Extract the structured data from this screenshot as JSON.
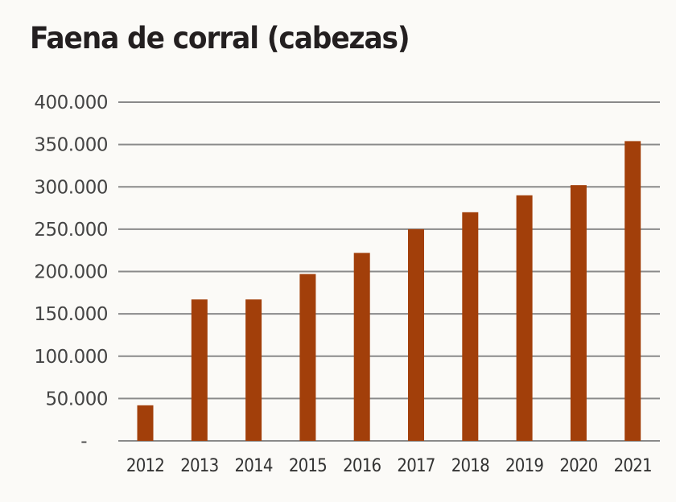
{
  "chart_data": {
    "type": "bar",
    "title": "Faena de corral (cabezas)",
    "xlabel": "",
    "ylabel": "",
    "categories": [
      "2012",
      "2013",
      "2014",
      "2015",
      "2016",
      "2017",
      "2018",
      "2019",
      "2020",
      "2021"
    ],
    "values": [
      42000,
      167000,
      167000,
      197000,
      222000,
      250000,
      270000,
      290000,
      302000,
      354000
    ],
    "ylim": [
      0,
      400000
    ],
    "yticks": [
      0,
      50000,
      100000,
      150000,
      200000,
      250000,
      300000,
      350000,
      400000
    ],
    "ytick_labels": [
      "-",
      "50.000",
      "100.000",
      "150.000",
      "200.000",
      "250.000",
      "300.000",
      "350.000",
      "400.000"
    ],
    "grid": true,
    "legend": "none",
    "colors": {
      "bar": "#a23f0a",
      "grid": "#8a8a8a",
      "background": "#fbfaf7",
      "title": "#231f20"
    }
  }
}
